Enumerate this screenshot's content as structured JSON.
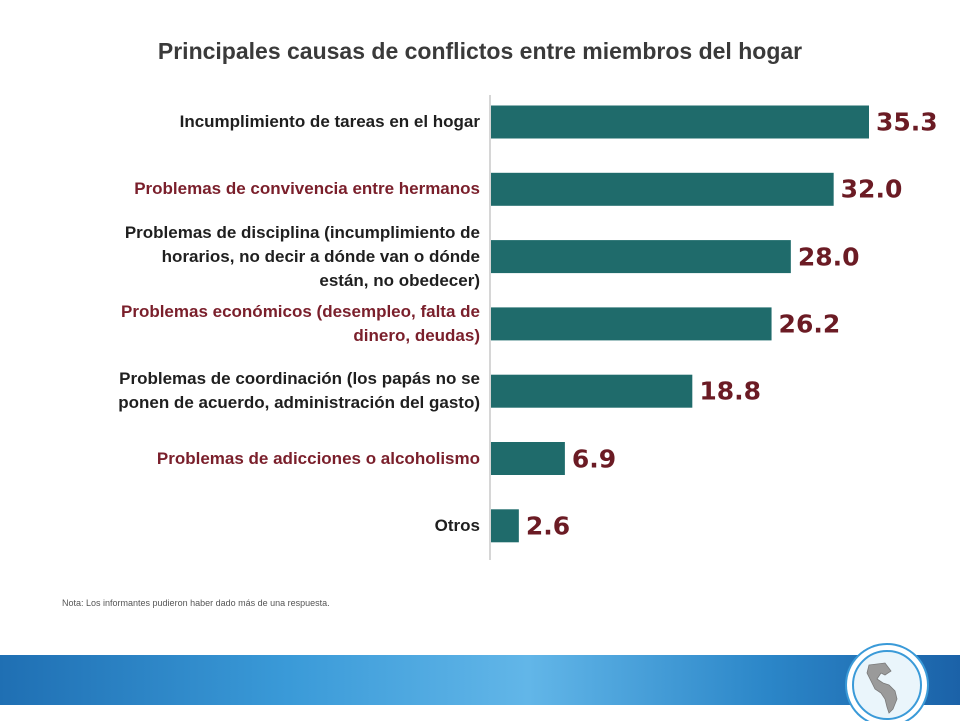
{
  "chart_data": {
    "type": "bar",
    "orientation": "horizontal",
    "title": "Principales causas de conflictos entre miembros del hogar",
    "categories": [
      [
        "Incumplimiento  de tareas en el hogar"
      ],
      [
        "Problemas de convivencia entre hermanos"
      ],
      [
        "Problemas de disciplina (incumplimiento de",
        "horarios, no decir a dónde van o dónde",
        "están, no obedecer)"
      ],
      [
        "Problemas económicos (desempleo, falta de",
        "dinero, deudas)"
      ],
      [
        "Problemas de coordinación (los papás no se",
        "ponen de acuerdo, administración  del gasto)"
      ],
      [
        "Problemas de adicciones o alcoholismo"
      ],
      [
        "Otros"
      ]
    ],
    "values": [
      35.3,
      32.0,
      28.0,
      26.2,
      18.8,
      6.9,
      2.6
    ],
    "value_labels": [
      "35.3",
      "32.0",
      "28.0",
      "26.2",
      "18.8",
      "6.9",
      "2.6"
    ],
    "label_colors": [
      "#1f1f1f",
      "#7a1f2b",
      "#1f1f1f",
      "#7a1f2b",
      "#1f1f1f",
      "#7a1f2b",
      "#1f1f1f"
    ],
    "value_color": "#6b1b24",
    "bar_color": "#1f6b6b",
    "axis_color": "#c8c8c8",
    "grid": false,
    "legend": "none"
  },
  "note": "Nota: Los informantes pudieron haber dado más de una respuesta.",
  "footer": {
    "band_color": "#2b86c8",
    "logo_icon": "americas-globe-icon"
  }
}
